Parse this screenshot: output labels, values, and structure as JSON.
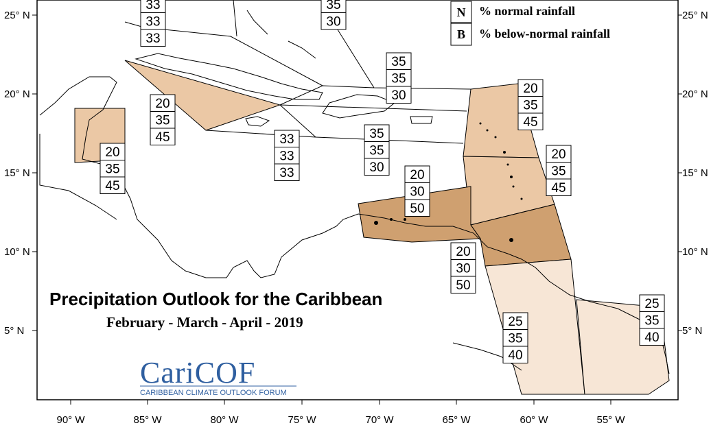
{
  "title": "Precipitation Outlook for the Caribbean",
  "subtitle": "February - March - April - 2019",
  "legend": [
    {
      "key": "N",
      "label": "% normal rainfall"
    },
    {
      "key": "B",
      "label": "% below-normal rainfall"
    }
  ],
  "lat_labels": [
    "25° N",
    "20° N",
    "15° N",
    "10° N",
    "5° N"
  ],
  "lon_labels": [
    "90° W",
    "85° W",
    "80° W",
    "75° W",
    "70° W",
    "65° W",
    "60° W",
    "55° W"
  ],
  "logo": {
    "name": "CariCOF",
    "tagline": "CARIBBEAN CLIMATE OUTLOOK FORUM"
  },
  "colors": {
    "light": "#f7e6d6",
    "medium": "#ebc8a5",
    "dark": "#cfa070"
  },
  "zones": [
    {
      "name": "bahamas-north",
      "values": [
        "33",
        "33",
        "33"
      ]
    },
    {
      "name": "bahamas-east",
      "values": [
        "35",
        "30"
      ]
    },
    {
      "name": "turks-caicos",
      "values": [
        "35",
        "35",
        "30"
      ]
    },
    {
      "name": "cuba-west",
      "values": [
        "20",
        "35",
        "45"
      ]
    },
    {
      "name": "belize",
      "values": [
        "20",
        "35",
        "45"
      ]
    },
    {
      "name": "jamaica",
      "values": [
        "33",
        "33",
        "33"
      ]
    },
    {
      "name": "hispaniola",
      "values": [
        "35",
        "35",
        "30"
      ]
    },
    {
      "name": "leeward-islands",
      "values": [
        "20",
        "35",
        "45"
      ]
    },
    {
      "name": "windward-islands",
      "values": [
        "20",
        "35",
        "45"
      ]
    },
    {
      "name": "abc-islands",
      "values": [
        "20",
        "30",
        "50"
      ]
    },
    {
      "name": "trinidad",
      "values": [
        "20",
        "30",
        "50"
      ]
    },
    {
      "name": "guyana",
      "values": [
        "25",
        "35",
        "40"
      ]
    },
    {
      "name": "suriname-guiana",
      "values": [
        "25",
        "35",
        "40"
      ]
    }
  ]
}
